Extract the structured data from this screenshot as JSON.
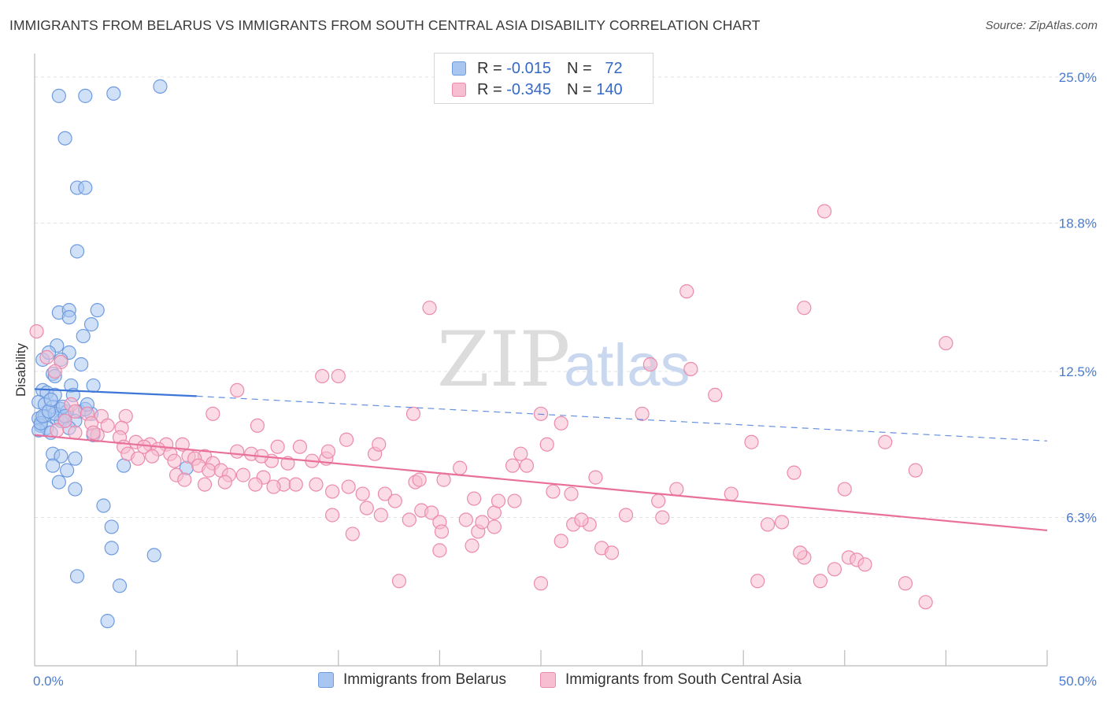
{
  "title": "IMMIGRANTS FROM BELARUS VS IMMIGRANTS FROM SOUTH CENTRAL ASIA DISABILITY CORRELATION CHART",
  "source": "Source: ZipAtlas.com",
  "watermark": {
    "part1": "ZIP",
    "part2": "atlas"
  },
  "legend": [
    {
      "r_label": "R =",
      "r_value": "-0.015",
      "n_label": "N =",
      "n_value": "72",
      "color": "#a9c6f0",
      "border": "#6e9be0"
    },
    {
      "r_label": "R =",
      "r_value": "-0.345",
      "n_label": "N =",
      "n_value": "140",
      "color": "#f7bdd0",
      "border": "#ec8aab"
    }
  ],
  "chart_data": {
    "type": "scatter",
    "ylabel": "Disability",
    "xlim": [
      0,
      50
    ],
    "ylim": [
      0,
      26
    ],
    "y_ticks": [
      {
        "value": 6.3,
        "label": "6.3%"
      },
      {
        "value": 12.5,
        "label": "12.5%"
      },
      {
        "value": 18.8,
        "label": "18.8%"
      },
      {
        "value": 25.0,
        "label": "25.0%"
      }
    ],
    "x_ticks": [
      {
        "value": 0,
        "label": "0.0%"
      },
      {
        "value": 50,
        "label": "50.0%"
      }
    ],
    "x_minor_ticks": [
      5,
      10,
      15,
      20,
      25,
      30,
      35,
      40,
      45
    ],
    "grid": true,
    "series": [
      {
        "name": "Immigrants from Belarus",
        "color": "#a9c6f0",
        "stroke": "#6e9be0",
        "trend": {
          "x0": 0,
          "y0": 11.75,
          "x1": 8,
          "y1": 11.45,
          "dash_to_x": 50,
          "dash_to_y": 9.55,
          "color": "#3d76d6"
        },
        "points": [
          [
            1.2,
            24.2
          ],
          [
            2.5,
            24.2
          ],
          [
            3.9,
            24.3
          ],
          [
            6.2,
            24.6
          ],
          [
            1.5,
            22.4
          ],
          [
            2.1,
            20.3
          ],
          [
            2.5,
            20.3
          ],
          [
            2.1,
            17.6
          ],
          [
            1.2,
            15.0
          ],
          [
            1.7,
            15.1
          ],
          [
            3.1,
            15.1
          ],
          [
            1.7,
            14.8
          ],
          [
            2.8,
            14.5
          ],
          [
            2.4,
            14.0
          ],
          [
            1.1,
            13.6
          ],
          [
            1.7,
            13.3
          ],
          [
            0.4,
            13.0
          ],
          [
            0.7,
            13.3
          ],
          [
            1.3,
            13.0
          ],
          [
            2.3,
            12.8
          ],
          [
            0.9,
            12.4
          ],
          [
            1.0,
            12.3
          ],
          [
            1.8,
            11.9
          ],
          [
            2.9,
            11.9
          ],
          [
            0.4,
            11.7
          ],
          [
            0.6,
            11.6
          ],
          [
            1.0,
            11.5
          ],
          [
            1.9,
            11.5
          ],
          [
            0.2,
            11.2
          ],
          [
            0.5,
            11.1
          ],
          [
            0.9,
            11.0
          ],
          [
            1.3,
            10.9
          ],
          [
            1.6,
            10.8
          ],
          [
            2.2,
            10.8
          ],
          [
            2.8,
            10.7
          ],
          [
            0.2,
            10.5
          ],
          [
            0.5,
            10.6
          ],
          [
            1.1,
            10.5
          ],
          [
            1.3,
            10.4
          ],
          [
            1.5,
            10.4
          ],
          [
            2.0,
            10.4
          ],
          [
            0.3,
            10.2
          ],
          [
            0.6,
            10.1
          ],
          [
            1.7,
            10.1
          ],
          [
            0.2,
            10.0
          ],
          [
            0.8,
            9.9
          ],
          [
            0.3,
            10.3
          ],
          [
            2.9,
            9.8
          ],
          [
            0.4,
            10.6
          ],
          [
            1.0,
            10.7
          ],
          [
            0.7,
            10.8
          ],
          [
            1.4,
            11.0
          ],
          [
            2.5,
            10.9
          ],
          [
            0.9,
            9.0
          ],
          [
            1.3,
            8.9
          ],
          [
            2.0,
            8.8
          ],
          [
            0.9,
            8.5
          ],
          [
            1.6,
            8.3
          ],
          [
            4.4,
            8.5
          ],
          [
            7.5,
            8.4
          ],
          [
            1.2,
            7.8
          ],
          [
            2.0,
            7.5
          ],
          [
            3.4,
            6.8
          ],
          [
            3.8,
            5.9
          ],
          [
            3.8,
            5.0
          ],
          [
            5.9,
            4.7
          ],
          [
            2.1,
            3.8
          ],
          [
            4.2,
            3.4
          ],
          [
            3.6,
            1.9
          ],
          [
            0.8,
            11.3
          ],
          [
            1.5,
            10.6
          ],
          [
            2.6,
            11.1
          ]
        ]
      },
      {
        "name": "Immigrants from South Central Asia",
        "color": "#f7bdd0",
        "stroke": "#ec8aab",
        "trend": {
          "x0": 0,
          "y0": 9.8,
          "x1": 50,
          "y1": 5.75,
          "color": "#e8709a"
        },
        "points": [
          [
            0.1,
            14.2
          ],
          [
            0.6,
            13.1
          ],
          [
            1.3,
            12.9
          ],
          [
            1.0,
            12.5
          ],
          [
            1.8,
            11.1
          ],
          [
            2.0,
            10.8
          ],
          [
            2.6,
            10.7
          ],
          [
            3.3,
            10.6
          ],
          [
            4.5,
            10.6
          ],
          [
            1.5,
            10.4
          ],
          [
            2.8,
            10.3
          ],
          [
            3.6,
            10.2
          ],
          [
            4.3,
            10.1
          ],
          [
            1.1,
            10.0
          ],
          [
            2.0,
            9.9
          ],
          [
            3.1,
            9.8
          ],
          [
            4.2,
            9.7
          ],
          [
            5.0,
            9.5
          ],
          [
            5.7,
            9.4
          ],
          [
            6.5,
            9.4
          ],
          [
            7.3,
            9.4
          ],
          [
            2.9,
            9.9
          ],
          [
            4.4,
            9.3
          ],
          [
            5.4,
            9.3
          ],
          [
            6.1,
            9.2
          ],
          [
            6.7,
            9.0
          ],
          [
            7.6,
            8.9
          ],
          [
            8.4,
            8.9
          ],
          [
            4.6,
            9.0
          ],
          [
            5.1,
            8.8
          ],
          [
            5.8,
            8.9
          ],
          [
            7.9,
            8.8
          ],
          [
            8.8,
            8.6
          ],
          [
            6.9,
            8.7
          ],
          [
            8.1,
            8.5
          ],
          [
            8.6,
            8.3
          ],
          [
            9.2,
            8.3
          ],
          [
            7.0,
            8.1
          ],
          [
            9.6,
            8.1
          ],
          [
            10.3,
            8.1
          ],
          [
            11.3,
            8.0
          ],
          [
            7.4,
            7.9
          ],
          [
            8.4,
            7.7
          ],
          [
            9.4,
            7.8
          ],
          [
            10.9,
            7.7
          ],
          [
            12.3,
            7.7
          ],
          [
            11.8,
            7.6
          ],
          [
            12.9,
            7.7
          ],
          [
            13.9,
            7.7
          ],
          [
            14.7,
            7.4
          ],
          [
            15.5,
            7.6
          ],
          [
            16.2,
            7.3
          ],
          [
            17.3,
            7.3
          ],
          [
            17.8,
            7.0
          ],
          [
            16.4,
            6.7
          ],
          [
            18.8,
            7.8
          ],
          [
            19.0,
            7.9
          ],
          [
            20.2,
            7.9
          ],
          [
            11.7,
            8.7
          ],
          [
            12.5,
            8.6
          ],
          [
            13.7,
            8.7
          ],
          [
            14.4,
            8.8
          ],
          [
            10.7,
            9.0
          ],
          [
            10.0,
            9.1
          ],
          [
            11.2,
            8.9
          ],
          [
            11.0,
            10.2
          ],
          [
            12.0,
            9.3
          ],
          [
            13.1,
            9.3
          ],
          [
            14.5,
            9.1
          ],
          [
            15.4,
            9.6
          ],
          [
            16.8,
            9.0
          ],
          [
            17.0,
            9.4
          ],
          [
            14.2,
            12.3
          ],
          [
            15.0,
            12.3
          ],
          [
            10.0,
            11.7
          ],
          [
            8.8,
            10.7
          ],
          [
            14.7,
            6.4
          ],
          [
            15.7,
            5.6
          ],
          [
            17.1,
            6.4
          ],
          [
            18.5,
            6.2
          ],
          [
            19.1,
            6.6
          ],
          [
            19.6,
            6.5
          ],
          [
            20.0,
            6.1
          ],
          [
            20.1,
            5.7
          ],
          [
            21.0,
            8.4
          ],
          [
            21.3,
            6.2
          ],
          [
            21.9,
            5.7
          ],
          [
            22.7,
            6.5
          ],
          [
            22.9,
            7.0
          ],
          [
            23.6,
            8.5
          ],
          [
            22.1,
            6.1
          ],
          [
            21.6,
            5.1
          ],
          [
            22.7,
            5.9
          ],
          [
            23.7,
            7.0
          ],
          [
            24.3,
            8.5
          ],
          [
            25.6,
            7.4
          ],
          [
            26.0,
            5.3
          ],
          [
            26.5,
            7.3
          ],
          [
            24.0,
            9.0
          ],
          [
            25.3,
            9.4
          ],
          [
            19.5,
            15.2
          ],
          [
            21.7,
            7.1
          ],
          [
            20.0,
            4.9
          ],
          [
            18.7,
            10.7
          ],
          [
            25.0,
            10.7
          ],
          [
            26.6,
            6.0
          ],
          [
            27.4,
            6.0
          ],
          [
            27.0,
            6.2
          ],
          [
            25.0,
            3.5
          ],
          [
            18.0,
            3.6
          ],
          [
            28.0,
            5.0
          ],
          [
            27.7,
            8.0
          ],
          [
            26.0,
            10.3
          ],
          [
            28.5,
            4.8
          ],
          [
            29.2,
            6.4
          ],
          [
            30.0,
            10.7
          ],
          [
            31.0,
            6.3
          ],
          [
            30.4,
            12.8
          ],
          [
            30.8,
            7.0
          ],
          [
            31.7,
            7.5
          ],
          [
            32.2,
            15.9
          ],
          [
            32.4,
            12.6
          ],
          [
            33.6,
            11.5
          ],
          [
            34.4,
            7.3
          ],
          [
            35.4,
            9.5
          ],
          [
            35.7,
            3.6
          ],
          [
            36.2,
            6.0
          ],
          [
            36.9,
            6.1
          ],
          [
            37.5,
            8.2
          ],
          [
            38.0,
            4.6
          ],
          [
            38.8,
            3.6
          ],
          [
            37.8,
            4.8
          ],
          [
            38.0,
            15.2
          ],
          [
            39.0,
            19.3
          ],
          [
            39.5,
            4.1
          ],
          [
            40.2,
            4.6
          ],
          [
            40.6,
            4.5
          ],
          [
            40.0,
            7.5
          ],
          [
            41.0,
            4.3
          ],
          [
            42.0,
            9.5
          ],
          [
            43.5,
            8.3
          ],
          [
            43.0,
            3.5
          ],
          [
            45.0,
            13.7
          ],
          [
            44.0,
            2.7
          ]
        ]
      }
    ]
  }
}
